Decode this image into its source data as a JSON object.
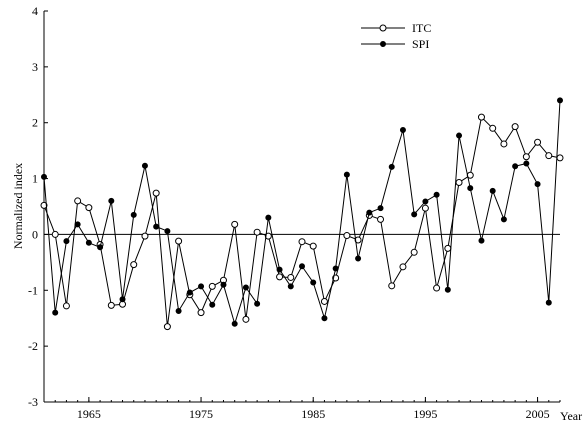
{
  "chart_data": {
    "type": "line",
    "title": "",
    "xlabel": "Year",
    "ylabel": "Normalized index",
    "xlim": [
      1961,
      2007
    ],
    "ylim": [
      -3,
      4
    ],
    "x_ticks": [
      1965,
      1975,
      1985,
      1995,
      2005
    ],
    "y_ticks": [
      -3,
      -2,
      -1,
      0,
      1,
      2,
      3,
      4
    ],
    "reference_line_y": 0,
    "grid": false,
    "legend_position": "top-right",
    "x": [
      1961,
      1962,
      1963,
      1964,
      1965,
      1966,
      1967,
      1968,
      1969,
      1970,
      1971,
      1972,
      1973,
      1974,
      1975,
      1976,
      1977,
      1978,
      1979,
      1980,
      1981,
      1982,
      1983,
      1984,
      1985,
      1986,
      1987,
      1988,
      1989,
      1990,
      1991,
      1992,
      1993,
      1994,
      1995,
      1996,
      1997,
      1998,
      1999,
      2000,
      2001,
      2002,
      2003,
      2004,
      2005,
      2006,
      2007
    ],
    "series": [
      {
        "name": "ITC",
        "marker": "open-circle",
        "color": "#000000",
        "values": [
          0.52,
          0.0,
          -1.28,
          0.6,
          0.48,
          -0.18,
          -1.27,
          -1.25,
          -0.54,
          -0.03,
          0.74,
          -1.65,
          -0.12,
          -1.08,
          -1.4,
          -0.93,
          -0.82,
          0.18,
          -1.52,
          0.04,
          -0.03,
          -0.76,
          -0.77,
          -0.13,
          -0.21,
          -1.2,
          -0.78,
          -0.02,
          -0.1,
          0.34,
          0.27,
          -0.92,
          -0.58,
          -0.32,
          0.47,
          -0.96,
          -0.25,
          0.93,
          1.06,
          2.1,
          1.9,
          1.62,
          1.93,
          1.39,
          1.65,
          1.41,
          1.37
        ]
      },
      {
        "name": "SPI",
        "marker": "filled-circle",
        "color": "#000000",
        "values": [
          1.03,
          -1.4,
          -0.12,
          0.18,
          -0.15,
          -0.23,
          0.6,
          -1.16,
          0.35,
          1.23,
          0.14,
          0.06,
          -1.37,
          -1.04,
          -0.93,
          -1.26,
          -0.9,
          -1.6,
          -0.95,
          -1.24,
          0.3,
          -0.63,
          -0.93,
          -0.57,
          -0.86,
          -1.5,
          -0.61,
          1.07,
          -0.43,
          0.39,
          0.47,
          1.21,
          1.87,
          0.36,
          0.59,
          0.71,
          -0.99,
          1.77,
          0.83,
          -0.11,
          0.78,
          0.27,
          1.22,
          1.27,
          0.9,
          -1.22,
          2.4
        ]
      }
    ]
  }
}
